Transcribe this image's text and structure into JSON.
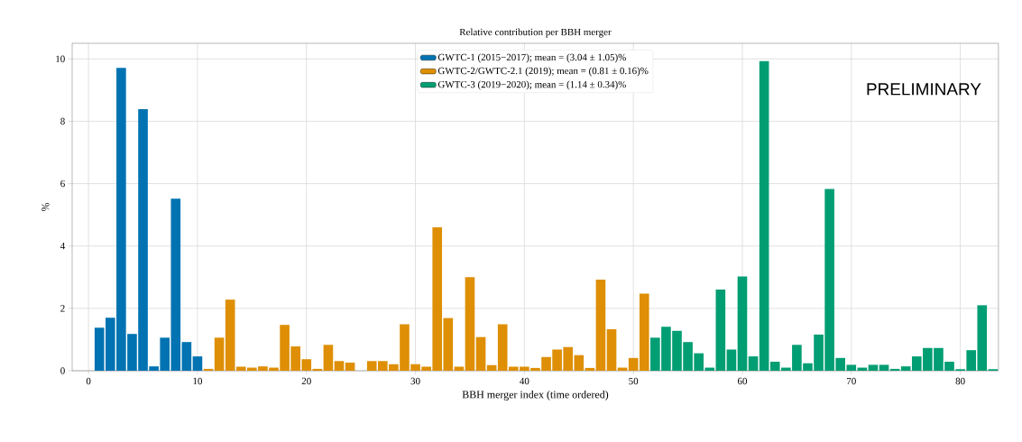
{
  "chart_data": {
    "type": "bar",
    "title": "Relative contribution per BBH merger",
    "xlabel": "BBH merger index (time ordered)",
    "ylabel": "%",
    "series": [
      {
        "name": "GWTC-1 (2015−2017); mean = (3.04 ± 1.05)%",
        "color": "#0173b2",
        "x": [
          1,
          2,
          3,
          4,
          5,
          6,
          7,
          8,
          9,
          10
        ],
        "values": [
          1.38,
          1.7,
          9.71,
          1.18,
          8.39,
          0.14,
          1.06,
          5.52,
          0.92,
          0.46
        ]
      },
      {
        "name": "GWTC-2/GWTC-2.1 (2019); mean = (0.81 ± 0.16)%",
        "color": "#de8f05",
        "x": [
          11,
          12,
          13,
          14,
          15,
          16,
          17,
          18,
          19,
          20,
          21,
          22,
          23,
          24,
          25,
          26,
          27,
          28,
          29,
          30,
          31,
          32,
          33,
          34,
          35,
          36,
          37,
          38,
          39,
          40,
          41,
          42,
          43,
          44,
          45,
          46,
          47,
          48,
          49,
          50,
          51
        ],
        "values": [
          0.06,
          1.06,
          2.28,
          0.13,
          0.1,
          0.14,
          0.1,
          1.47,
          0.78,
          0.37,
          0.06,
          0.83,
          0.31,
          0.26,
          null,
          0.31,
          0.31,
          0.21,
          1.49,
          0.21,
          0.13,
          4.6,
          1.69,
          0.13,
          3.0,
          1.08,
          0.18,
          1.49,
          0.13,
          0.13,
          0.09,
          0.44,
          0.68,
          0.76,
          0.5,
          0.09,
          2.92,
          1.33,
          0.1,
          0.41,
          2.47
        ]
      },
      {
        "name": "GWTC-3 (2019−2020); mean = (1.14 ± 0.34)%",
        "color": "#029e73",
        "x": [
          52,
          53,
          54,
          55,
          56,
          57,
          58,
          59,
          60,
          61,
          62,
          63,
          64,
          65,
          66,
          67,
          68,
          69,
          70,
          71,
          72,
          73,
          74,
          75,
          76,
          77,
          78,
          79,
          80,
          81,
          82,
          83
        ],
        "values": [
          1.06,
          1.41,
          1.28,
          0.92,
          0.56,
          0.1,
          2.6,
          0.68,
          3.02,
          0.46,
          9.93,
          0.29,
          0.1,
          0.83,
          0.24,
          1.16,
          5.83,
          0.41,
          0.19,
          0.1,
          0.19,
          0.19,
          0.06,
          0.14,
          0.46,
          0.73,
          0.73,
          0.29,
          0.05,
          0.66,
          2.1,
          0.05
        ]
      }
    ],
    "xlim": [
      -1.5,
      83.5
    ],
    "ylim": [
      0,
      10.5
    ],
    "xticks": [
      0,
      10,
      20,
      30,
      40,
      50,
      60,
      70,
      80
    ],
    "yticks": [
      0,
      2,
      4,
      6,
      8,
      10
    ],
    "grid": true,
    "legend": "top",
    "annotations": [
      "PRELIMINARY"
    ]
  }
}
